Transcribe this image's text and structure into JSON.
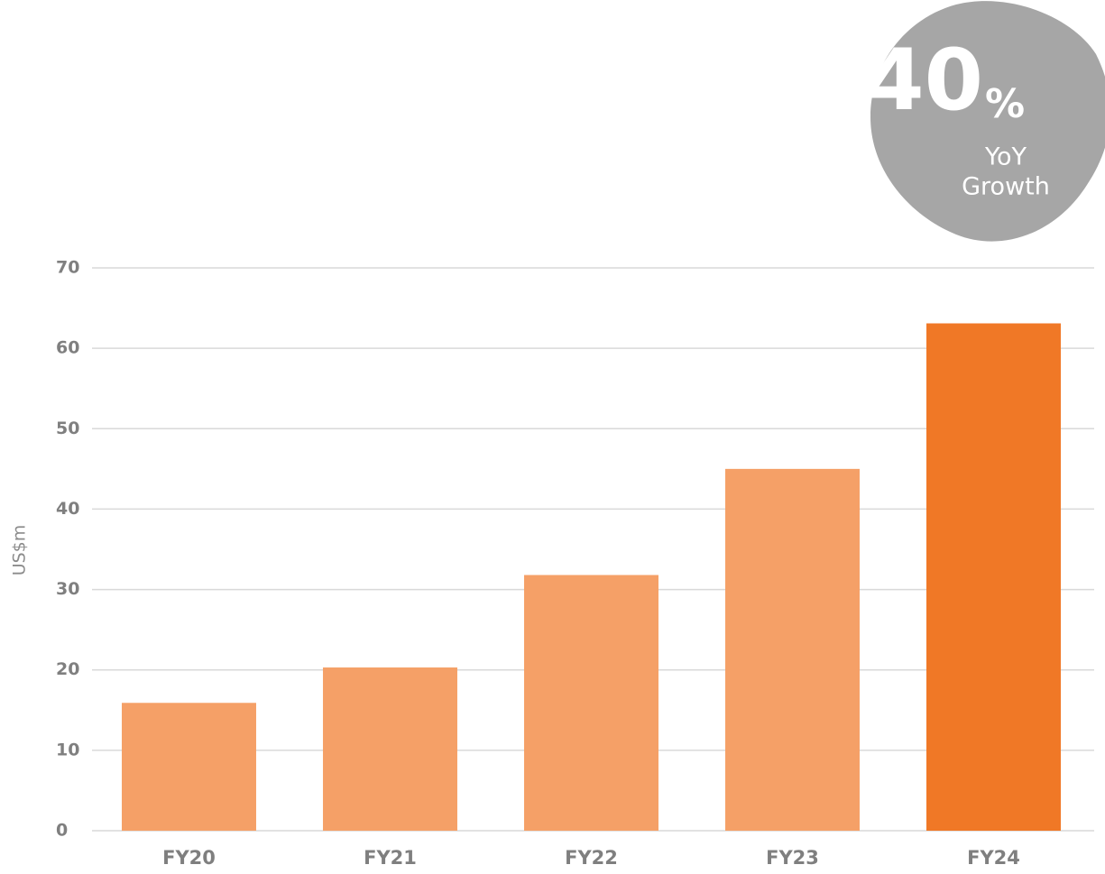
{
  "chart_data": {
    "type": "bar",
    "categories": [
      "FY20",
      "FY21",
      "FY22",
      "FY23",
      "FY24"
    ],
    "values": [
      15.9,
      20.3,
      31.8,
      45.0,
      63.1
    ],
    "colors": [
      "#f5a067",
      "#f5a067",
      "#f5a067",
      "#f5a067",
      "#f07826"
    ],
    "y_label": "US$m",
    "ylim": [
      0,
      70
    ],
    "yticks": [
      0,
      10,
      20,
      30,
      40,
      50,
      60,
      70
    ],
    "grid": true,
    "annotation": {
      "value": "40",
      "unit": "%",
      "lines": [
        "YoY",
        "Growth"
      ]
    }
  }
}
